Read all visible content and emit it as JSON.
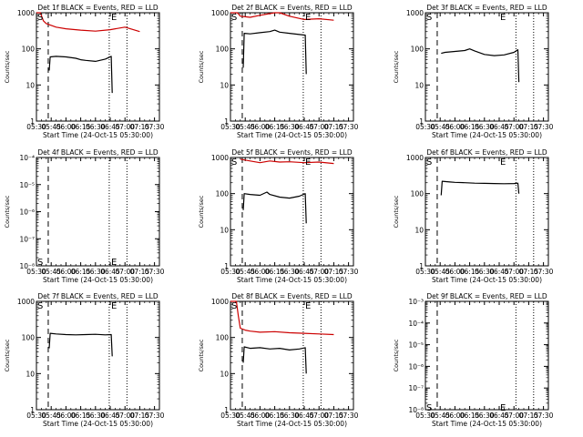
{
  "chart_data": [
    {
      "type": "line",
      "title": "Det 1f BLACK = Events, RED = LLD",
      "xlabel": "Start Time (24-Oct-15 05:30:00)",
      "ylabel": "Counts/sec",
      "log_y": true,
      "ylim": [
        1,
        1000
      ],
      "yticks": [
        {
          "value": 1,
          "label": "1"
        },
        {
          "value": 10,
          "label": "10"
        },
        {
          "value": 100,
          "label": "100"
        },
        {
          "value": 1000,
          "label": "1000"
        }
      ],
      "xlim": [
        "05:30",
        "07:35"
      ],
      "xticks": [
        "05:30",
        "05:45",
        "06:00",
        "06:15",
        "06:30",
        "06:45",
        "07:00",
        "07:15",
        "07:30"
      ],
      "markers": [
        {
          "label": "S",
          "x": "05:30",
          "y": 1000
        },
        {
          "label": "E",
          "x": "06:45",
          "y": 1000
        }
      ],
      "vlines": [
        {
          "x": "05:42",
          "style": "dashed"
        },
        {
          "x": "06:44",
          "style": "dotted"
        },
        {
          "x": "07:02",
          "style": "dotted"
        }
      ],
      "series": [
        {
          "color": "#000000",
          "x": [
            "05:43",
            "05:44",
            "05:50",
            "06:00",
            "06:10",
            "06:15",
            "06:20",
            "06:30",
            "06:40",
            "06:46",
            "06:47"
          ],
          "values": [
            25,
            60,
            62,
            60,
            55,
            50,
            48,
            45,
            52,
            62,
            6
          ]
        },
        {
          "color": "#cc0000",
          "x": [
            "05:30",
            "05:34",
            "05:37",
            "05:40",
            "05:50",
            "06:00",
            "06:15",
            "06:30",
            "06:45",
            "07:00",
            "07:10",
            "07:15"
          ],
          "values": [
            1000,
            1000,
            600,
            500,
            400,
            360,
            330,
            310,
            340,
            400,
            330,
            300
          ]
        }
      ]
    },
    {
      "type": "line",
      "title": "Det 2f BLACK = Events, RED = LLD",
      "xlabel": "Start Time (24-Oct-15 05:30:00)",
      "ylabel": "Counts/sec",
      "log_y": true,
      "ylim": [
        1,
        1000
      ],
      "yticks": [
        {
          "value": 1,
          "label": "1"
        },
        {
          "value": 10,
          "label": "10"
        },
        {
          "value": 100,
          "label": "100"
        },
        {
          "value": 1000,
          "label": "1000"
        }
      ],
      "xlim": [
        "05:30",
        "07:35"
      ],
      "xticks": [
        "05:30",
        "05:45",
        "06:00",
        "06:15",
        "06:30",
        "06:45",
        "07:00",
        "07:15",
        "07:30"
      ],
      "markers": [
        {
          "label": "S",
          "x": "05:30",
          "y": 1000
        },
        {
          "label": "E",
          "x": "06:45",
          "y": 1000
        }
      ],
      "vlines": [
        {
          "x": "05:42",
          "style": "dashed"
        },
        {
          "x": "06:44",
          "style": "dotted"
        },
        {
          "x": "07:02",
          "style": "dotted"
        }
      ],
      "series": [
        {
          "color": "#000000",
          "x": [
            "05:43",
            "05:44",
            "05:50",
            "06:00",
            "06:10",
            "06:15",
            "06:20",
            "06:30",
            "06:40",
            "06:46",
            "06:47"
          ],
          "values": [
            30,
            270,
            260,
            280,
            300,
            330,
            290,
            270,
            250,
            240,
            20
          ]
        },
        {
          "color": "#cc0000",
          "x": [
            "05:30",
            "05:34",
            "05:37",
            "05:40",
            "05:50",
            "06:00",
            "06:15",
            "06:20",
            "06:30",
            "06:45",
            "07:00",
            "07:15"
          ],
          "values": [
            1000,
            1000,
            1000,
            800,
            750,
            850,
            1100,
            1050,
            800,
            650,
            680,
            620
          ]
        }
      ]
    },
    {
      "type": "line",
      "title": "Det 3f BLACK = Events, RED = LLD",
      "xlabel": "Start Time (24-Oct-15 05:30:00)",
      "ylabel": "Counts/sec",
      "log_y": true,
      "ylim": [
        1,
        1000
      ],
      "yticks": [
        {
          "value": 1,
          "label": "1"
        },
        {
          "value": 10,
          "label": "10"
        },
        {
          "value": 100,
          "label": "100"
        },
        {
          "value": 1000,
          "label": "1000"
        }
      ],
      "xlim": [
        "05:30",
        "07:35"
      ],
      "xticks": [
        "05:30",
        "05:45",
        "06:00",
        "06:15",
        "06:30",
        "06:45",
        "07:00",
        "07:15",
        "07:30"
      ],
      "markers": [
        {
          "label": "S",
          "x": "05:30",
          "y": 1000
        },
        {
          "label": "E",
          "x": "06:45",
          "y": 1000
        }
      ],
      "vlines": [
        {
          "x": "05:42",
          "style": "dashed"
        },
        {
          "x": "07:02",
          "style": "dotted"
        },
        {
          "x": "07:20",
          "style": "dotted"
        }
      ],
      "series": [
        {
          "color": "#000000",
          "x": [
            "05:46",
            "05:50",
            "06:00",
            "06:10",
            "06:15",
            "06:20",
            "06:30",
            "06:40",
            "06:50",
            "07:00",
            "07:04",
            "07:05"
          ],
          "values": [
            75,
            80,
            85,
            90,
            100,
            88,
            70,
            65,
            68,
            80,
            95,
            12
          ]
        }
      ]
    },
    {
      "type": "line",
      "title": "Det 4f BLACK = Events, RED = LLD",
      "xlabel": "Start Time (24-Oct-15 05:30:00)",
      "ylabel": "Counts/sec",
      "log_y": true,
      "ylim": [
        1e-08,
        0.0001
      ],
      "yticks": [
        {
          "value": 1e-08,
          "label": "10⁻⁸"
        },
        {
          "value": 1e-07,
          "label": "10⁻⁷"
        },
        {
          "value": 1e-06,
          "label": "10⁻⁶"
        },
        {
          "value": 1e-05,
          "label": "10⁻⁵"
        },
        {
          "value": 0.0001,
          "label": "10⁻⁴"
        }
      ],
      "xlim": [
        "05:30",
        "07:35"
      ],
      "xticks": [
        "05:30",
        "05:45",
        "06:00",
        "06:15",
        "06:30",
        "06:45",
        "07:00",
        "07:15",
        "07:30"
      ],
      "markers": [
        {
          "label": "S",
          "x": "05:30",
          "y": 2e-08
        },
        {
          "label": "E",
          "x": "06:45",
          "y": 2e-08
        }
      ],
      "vlines": [
        {
          "x": "05:42",
          "style": "dashed"
        },
        {
          "x": "06:44",
          "style": "dotted"
        },
        {
          "x": "07:02",
          "style": "dotted"
        }
      ],
      "series": []
    },
    {
      "type": "line",
      "title": "Det 5f BLACK = Events, RED = LLD",
      "xlabel": "Start Time (24-Oct-15 05:30:00)",
      "ylabel": "Counts/sec",
      "log_y": true,
      "ylim": [
        1,
        1000
      ],
      "yticks": [
        {
          "value": 1,
          "label": "1"
        },
        {
          "value": 10,
          "label": "10"
        },
        {
          "value": 100,
          "label": "100"
        },
        {
          "value": 1000,
          "label": "1000"
        }
      ],
      "xlim": [
        "05:30",
        "07:35"
      ],
      "xticks": [
        "05:30",
        "05:45",
        "06:00",
        "06:15",
        "06:30",
        "06:45",
        "07:00",
        "07:15",
        "07:30"
      ],
      "markers": [
        {
          "label": "S",
          "x": "05:30",
          "y": 1000
        },
        {
          "label": "E",
          "x": "06:45",
          "y": 1000
        }
      ],
      "vlines": [
        {
          "x": "05:42",
          "style": "dashed"
        },
        {
          "x": "06:44",
          "style": "dotted"
        },
        {
          "x": "07:02",
          "style": "dotted"
        }
      ],
      "series": [
        {
          "color": "#000000",
          "x": [
            "05:43",
            "05:44",
            "05:50",
            "06:00",
            "06:07",
            "06:10",
            "06:20",
            "06:30",
            "06:40",
            "06:46",
            "06:47"
          ],
          "values": [
            35,
            100,
            95,
            90,
            110,
            95,
            80,
            75,
            85,
            100,
            15
          ]
        },
        {
          "color": "#cc0000",
          "x": [
            "05:40",
            "05:50",
            "06:00",
            "06:10",
            "06:20",
            "06:30",
            "06:45",
            "07:00",
            "07:15"
          ],
          "values": [
            900,
            800,
            720,
            800,
            750,
            760,
            720,
            750,
            680
          ]
        }
      ]
    },
    {
      "type": "line",
      "title": "Det 6f BLACK = Events, RED = LLD",
      "xlabel": "Start Time (24-Oct-15 05:30:00)",
      "ylabel": "Counts/sec",
      "log_y": true,
      "ylim": [
        1,
        1000
      ],
      "yticks": [
        {
          "value": 1,
          "label": "1"
        },
        {
          "value": 10,
          "label": "10"
        },
        {
          "value": 100,
          "label": "100"
        },
        {
          "value": 1000,
          "label": "1000"
        }
      ],
      "xlim": [
        "05:30",
        "07:35"
      ],
      "xticks": [
        "05:30",
        "05:45",
        "06:00",
        "06:15",
        "06:30",
        "06:45",
        "07:00",
        "07:15",
        "07:30"
      ],
      "markers": [
        {
          "label": "S",
          "x": "05:30",
          "y": 1000
        },
        {
          "label": "E",
          "x": "06:45",
          "y": 1000
        }
      ],
      "vlines": [
        {
          "x": "05:42",
          "style": "dashed"
        },
        {
          "x": "07:02",
          "style": "dotted"
        },
        {
          "x": "07:20",
          "style": "dotted"
        }
      ],
      "series": [
        {
          "color": "#000000",
          "x": [
            "05:46",
            "05:47",
            "05:55",
            "06:00",
            "06:10",
            "06:20",
            "06:30",
            "06:40",
            "06:50",
            "07:00",
            "07:04",
            "07:05"
          ],
          "values": [
            90,
            220,
            210,
            205,
            200,
            195,
            192,
            190,
            188,
            190,
            195,
            100
          ]
        }
      ]
    },
    {
      "type": "line",
      "title": "Det 7f BLACK = Events, RED = LLD",
      "xlabel": "Start Time (24-Oct-15 05:30:00)",
      "ylabel": "Counts/sec",
      "log_y": true,
      "ylim": [
        1,
        1000
      ],
      "yticks": [
        {
          "value": 1,
          "label": "1"
        },
        {
          "value": 10,
          "label": "10"
        },
        {
          "value": 100,
          "label": "100"
        },
        {
          "value": 1000,
          "label": "1000"
        }
      ],
      "xlim": [
        "05:30",
        "07:35"
      ],
      "xticks": [
        "05:30",
        "05:45",
        "06:00",
        "06:15",
        "06:30",
        "06:45",
        "07:00",
        "07:15",
        "07:30"
      ],
      "markers": [
        {
          "label": "S",
          "x": "05:30",
          "y": 1000
        },
        {
          "label": "E",
          "x": "06:45",
          "y": 1000
        }
      ],
      "vlines": [
        {
          "x": "05:42",
          "style": "dashed"
        },
        {
          "x": "06:44",
          "style": "dotted"
        },
        {
          "x": "07:02",
          "style": "dotted"
        }
      ],
      "series": [
        {
          "color": "#000000",
          "x": [
            "05:43",
            "05:44",
            "05:50",
            "06:00",
            "06:10",
            "06:20",
            "06:30",
            "06:40",
            "06:46",
            "06:47"
          ],
          "values": [
            50,
            130,
            125,
            120,
            118,
            120,
            122,
            118,
            120,
            30
          ]
        }
      ]
    },
    {
      "type": "line",
      "title": "Det 8f BLACK = Events, RED = LLD",
      "xlabel": "Start Time (24-Oct-15 05:30:00)",
      "ylabel": "Counts/sec",
      "log_y": true,
      "ylim": [
        1,
        1000
      ],
      "yticks": [
        {
          "value": 1,
          "label": "1"
        },
        {
          "value": 10,
          "label": "10"
        },
        {
          "value": 100,
          "label": "100"
        },
        {
          "value": 1000,
          "label": "1000"
        }
      ],
      "xlim": [
        "05:30",
        "07:35"
      ],
      "xticks": [
        "05:30",
        "05:45",
        "06:00",
        "06:15",
        "06:30",
        "06:45",
        "07:00",
        "07:15",
        "07:30"
      ],
      "markers": [
        {
          "label": "S",
          "x": "05:30",
          "y": 1000
        },
        {
          "label": "E",
          "x": "06:45",
          "y": 1000
        }
      ],
      "vlines": [
        {
          "x": "05:42",
          "style": "dashed"
        },
        {
          "x": "06:44",
          "style": "dotted"
        },
        {
          "x": "07:02",
          "style": "dotted"
        }
      ],
      "series": [
        {
          "color": "#000000",
          "x": [
            "05:43",
            "05:44",
            "05:50",
            "06:00",
            "06:10",
            "06:20",
            "06:30",
            "06:40",
            "06:46",
            "06:47"
          ],
          "values": [
            20,
            55,
            50,
            52,
            48,
            50,
            45,
            48,
            52,
            10
          ]
        },
        {
          "color": "#cc0000",
          "x": [
            "05:30",
            "05:36",
            "05:38",
            "05:40",
            "05:45",
            "05:50",
            "06:00",
            "06:15",
            "06:30",
            "06:45",
            "07:00",
            "07:15"
          ],
          "values": [
            1000,
            1000,
            400,
            180,
            160,
            150,
            140,
            145,
            135,
            130,
            125,
            120
          ]
        }
      ]
    },
    {
      "type": "line",
      "title": "Det 9f BLACK = Events, RED = LLD",
      "xlabel": "Start Time (24-Oct-15 05:30:00)",
      "ylabel": "Counts/sec",
      "log_y": true,
      "ylim": [
        1e-08,
        0.001
      ],
      "yticks": [
        {
          "value": 1e-08,
          "label": "10⁻⁸"
        },
        {
          "value": 1e-07,
          "label": "10⁻⁷"
        },
        {
          "value": 1e-06,
          "label": "10⁻⁶"
        },
        {
          "value": 1e-05,
          "label": "10⁻⁵"
        },
        {
          "value": 0.0001,
          "label": "10⁻⁴"
        },
        {
          "value": 0.001,
          "label": "10⁻³"
        }
      ],
      "xlim": [
        "05:30",
        "07:35"
      ],
      "xticks": [
        "05:30",
        "05:45",
        "06:00",
        "06:15",
        "06:30",
        "06:45",
        "07:00",
        "07:15",
        "07:30"
      ],
      "markers": [
        {
          "label": "S",
          "x": "05:30",
          "y": 2e-08
        },
        {
          "label": "E",
          "x": "06:45",
          "y": 2e-08
        }
      ],
      "vlines": [
        {
          "x": "05:42",
          "style": "dashed"
        },
        {
          "x": "07:02",
          "style": "dotted"
        },
        {
          "x": "07:20",
          "style": "dotted"
        }
      ],
      "series": []
    }
  ]
}
